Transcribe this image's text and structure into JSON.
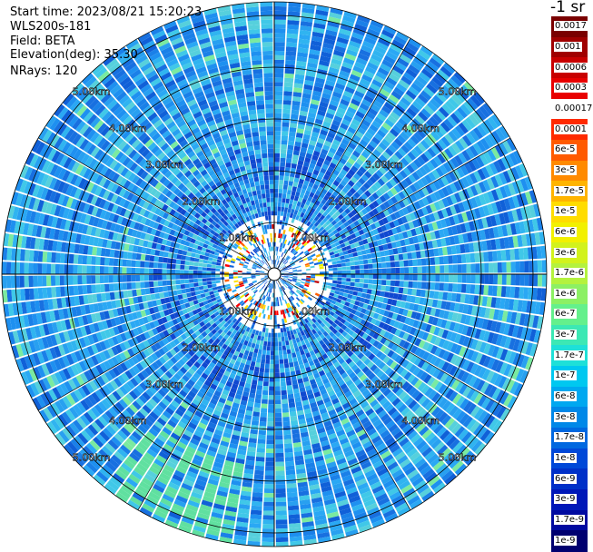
{
  "header": {
    "start_time": "Start time: 2023/08/21 15:20:23",
    "instrument": "WLS200s-181",
    "field": "Field: BETA",
    "elevation": "Elevation(deg): 35.30",
    "nrays": "NRays: 120"
  },
  "colorbar": {
    "unit_label": "-1 sr",
    "labels": [
      "0.0017",
      "0.001",
      "0.0006",
      "0.0003",
      "0.00017",
      "0.0001",
      "6e-5",
      "3e-5",
      "1.7e-5",
      "1e-5",
      "6e-6",
      "3e-6",
      "1.7e-6",
      "1e-6",
      "6e-7",
      "3e-7",
      "1.7e-7",
      "1e-7",
      "6e-8",
      "3e-8",
      "1.7e-8",
      "1e-8",
      "6e-9",
      "3e-9",
      "1.7e-9",
      "1e-9"
    ],
    "colors": [
      "#7a0000",
      "#a00000",
      "#c80000",
      "#e80000",
      "#ffffff",
      "#ff2a00",
      "#ff5a00",
      "#ff8a00",
      "#ffb400",
      "#ffdc00",
      "#f2f000",
      "#d2f21c",
      "#b4f23e",
      "#8cf064",
      "#64f08c",
      "#3ce8b4",
      "#1ee0d8",
      "#00c8f0",
      "#00a8f0",
      "#0088e8",
      "#0068e0",
      "#0048d8",
      "#0030c8",
      "#0018b8",
      "#000aa0",
      "#000070"
    ]
  },
  "map": {
    "range_rings_km": [
      "1.00km",
      "2.00km",
      "3.00km",
      "4.00km",
      "5.00km"
    ],
    "rings_diag": [
      "1.00km",
      "2.00km",
      "3.00km",
      "4.00km",
      "5.00km"
    ],
    "nrays": 120
  }
}
